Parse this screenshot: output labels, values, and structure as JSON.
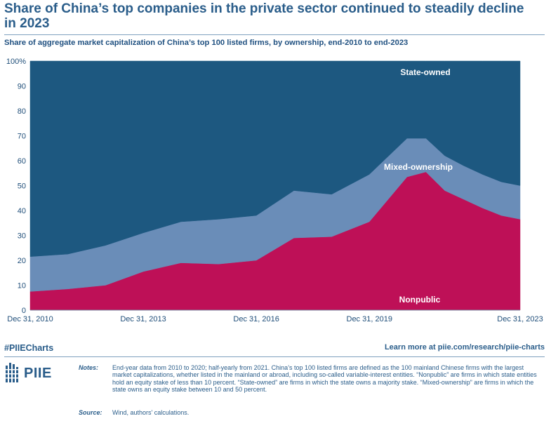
{
  "header": {
    "title": "Share of China’s top companies in the private sector continued to steadily decline in 2023",
    "subtitle": "Share of aggregate market capitalization of China’s top 100 listed firms, by ownership, end-2010 to end-2023"
  },
  "chart_data": {
    "type": "area",
    "stacked": true,
    "ylim": [
      0,
      100
    ],
    "yticks": [
      "0",
      "10",
      "20",
      "30",
      "40",
      "50",
      "60",
      "70",
      "80",
      "90",
      "100%"
    ],
    "xtick_labels": [
      "Dec 31, 2010",
      "Dec 31, 2013",
      "Dec 31, 2016",
      "Dec 31, 2019",
      "Dec 31, 2023"
    ],
    "x": [
      "2010-12",
      "2011-12",
      "2012-12",
      "2013-12",
      "2014-12",
      "2015-12",
      "2016-12",
      "2017-12",
      "2018-12",
      "2019-12",
      "2020-12",
      "2021-06",
      "2021-12",
      "2022-06",
      "2022-12",
      "2023-06",
      "2023-12"
    ],
    "series": [
      {
        "name": "Nonpublic",
        "color": "#be1057",
        "values": [
          7.5,
          8.5,
          10,
          15.5,
          19,
          18.5,
          20,
          29,
          29.5,
          35.5,
          53.5,
          55.5,
          48,
          44.5,
          41,
          38,
          36.5
        ]
      },
      {
        "name": "Mixed-ownership",
        "color": "#6a8db8",
        "values": [
          14,
          14,
          16,
          15.5,
          16.5,
          18,
          18,
          19,
          17,
          19,
          15.5,
          13.5,
          14,
          13.5,
          13.5,
          13.5,
          13.5
        ]
      },
      {
        "name": "State-owned",
        "color": "#1d5880",
        "values": [
          78.5,
          77.5,
          74,
          69,
          64.5,
          63.5,
          62,
          52,
          53.5,
          45.5,
          31,
          31,
          38,
          42,
          45.5,
          48.5,
          50
        ]
      }
    ],
    "series_labels": [
      "State-owned",
      "Mixed-ownership",
      "Nonpublic"
    ]
  },
  "footer": {
    "hashtag": "#PIIECharts",
    "learn_more": "Learn more at piie.com/research/piie-charts",
    "logo_text": "PIIE",
    "notes_label": "Notes:",
    "notes": "End-year data from 2010 to 2020; half-yearly from 2021. China’s top 100 listed firms are defined as the 100 mainland Chinese firms with the largest market capitalizations, whether listed in the mainland or abroad, including so-called variable-interest entities. “Nonpublic” are firms in which state entities hold an equity stake of less than 10 percent. “State-owned” are firms in which the state owns a majority stake. “Mixed-ownership” are firms in which the state owns an equity stake between 10 and 50 percent.",
    "source_label": "Source:",
    "source": "Wind, authors’ calculations."
  }
}
